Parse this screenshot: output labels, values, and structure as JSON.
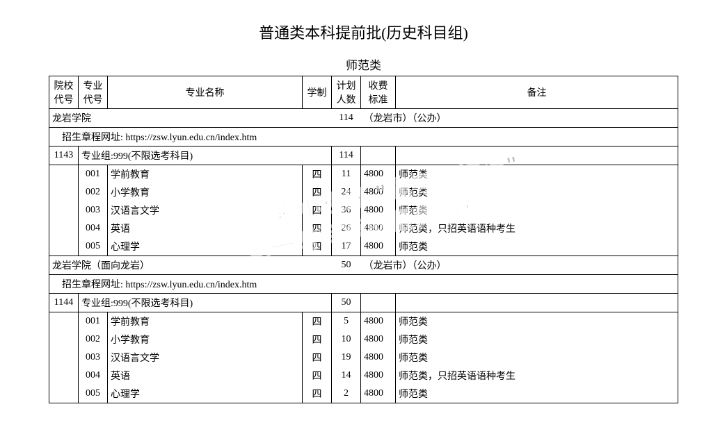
{
  "title": "普通类本科提前批(历史科目组)",
  "subtitle": "师范类",
  "headers": {
    "col1": "院校\n代号",
    "col2": "专业\n代号",
    "col3": "专业名称",
    "col4": "学制",
    "col5": "计划\n人数",
    "col6": "收费\n标准",
    "col7": "备注"
  },
  "school1": {
    "name_line": "龙岩学院",
    "plan_total": "114",
    "location": "（龙岩市）（公办）",
    "url_line": "招生章程网址: https://zsw.lyun.edu.cn/index.htm",
    "group_code": "1143",
    "group_line": "专业组:999(不限选考科目)",
    "group_plan": "114",
    "rows": [
      {
        "code": "001",
        "name": "学前教育",
        "dur": "四",
        "plan": "11",
        "fee": "4800",
        "note": "师范类"
      },
      {
        "code": "002",
        "name": "小学教育",
        "dur": "四",
        "plan": "24",
        "fee": "4800",
        "note": "师范类"
      },
      {
        "code": "003",
        "name": "汉语言文学",
        "dur": "四",
        "plan": "36",
        "fee": "4800",
        "note": "师范类"
      },
      {
        "code": "004",
        "name": "英语",
        "dur": "四",
        "plan": "26",
        "fee": "4800",
        "note": "师范类，只招英语语种考生"
      },
      {
        "code": "005",
        "name": "心理学",
        "dur": "四",
        "plan": "17",
        "fee": "4800",
        "note": "师范类"
      }
    ]
  },
  "school2": {
    "name_line": "龙岩学院（面向龙岩）",
    "plan_total": "50",
    "location": "（龙岩市）（公办）",
    "url_line": "招生章程网址: https://zsw.lyun.edu.cn/index.htm",
    "group_code": "1144",
    "group_line": "专业组:999(不限选考科目)",
    "group_plan": "50",
    "rows": [
      {
        "code": "001",
        "name": "学前教育",
        "dur": "四",
        "plan": "5",
        "fee": "4800",
        "note": "师范类"
      },
      {
        "code": "002",
        "name": "小学教育",
        "dur": "四",
        "plan": "10",
        "fee": "4800",
        "note": "师范类"
      },
      {
        "code": "003",
        "name": "汉语言文学",
        "dur": "四",
        "plan": "19",
        "fee": "4800",
        "note": "师范类"
      },
      {
        "code": "004",
        "name": "英语",
        "dur": "四",
        "plan": "14",
        "fee": "4800",
        "note": "师范类，只招英语语种考生"
      },
      {
        "code": "005",
        "name": "心理学",
        "dur": "四",
        "plan": "2",
        "fee": "4800",
        "note": "师范类"
      }
    ]
  },
  "watermark": {
    "line1": "微信搜索小程序 \"高考早知道\"",
    "line2": "第一时间获取最新资料"
  },
  "style": {
    "border_color": "#000000",
    "background": "#ffffff",
    "title_fontsize": 22,
    "subtitle_fontsize": 17,
    "body_fontsize": 14,
    "watermark_color": "#888888",
    "watermark_stroke": "#ffffff",
    "watermark_fontsize": 34,
    "watermark_rotate_deg": -12
  }
}
